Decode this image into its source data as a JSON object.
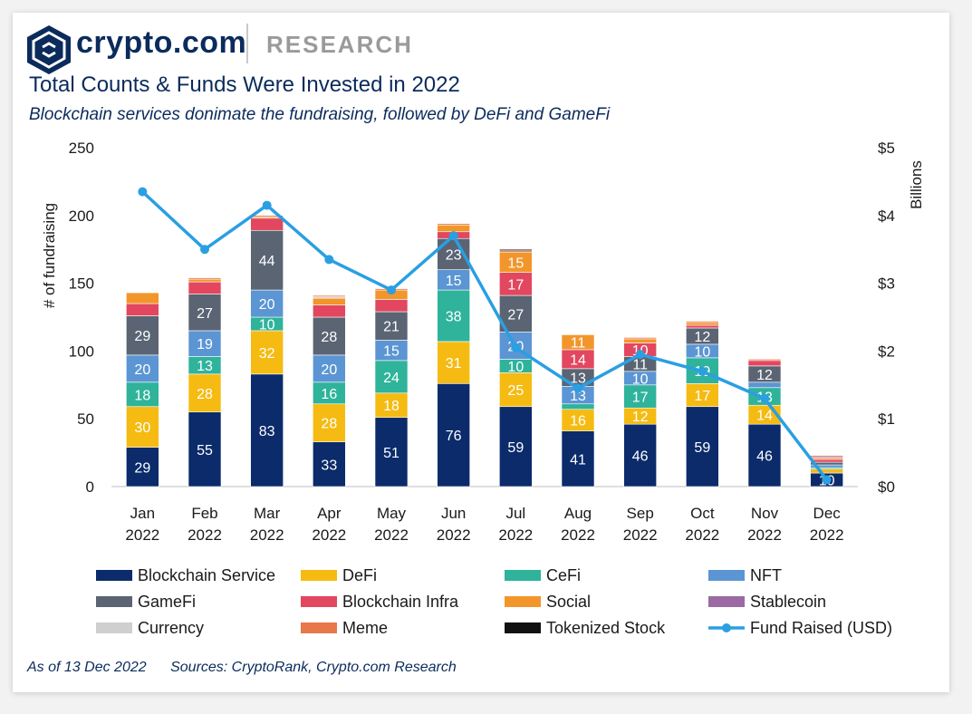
{
  "header": {
    "brand": "crypto.com",
    "section": "RESEARCH",
    "title": "Total Counts & Funds Were Invested in 2022",
    "subtitle": "Blockchain services donimate the fundraising, followed by DeFi and GameFi"
  },
  "footer": {
    "as_of": "As of 13 Dec 2022",
    "sources": "Sources: CryptoRank, Crypto.com Research"
  },
  "colors": {
    "brand_navy": "#0b2b5c",
    "line": "#2a9fe2"
  },
  "chart_data": {
    "type": "bar",
    "stacked": true,
    "categories": [
      "Jan 2022",
      "Feb 2022",
      "Mar 2022",
      "Apr 2022",
      "May 2022",
      "Jun 2022",
      "Jul 2022",
      "Aug 2022",
      "Sep 2022",
      "Oct 2022",
      "Nov 2022",
      "Dec 2022"
    ],
    "ylabel": "# of fundraising",
    "y2label": "Billions",
    "ylim": [
      0,
      250
    ],
    "y2lim": [
      0,
      5
    ],
    "yticks": [
      "0",
      "50",
      "100",
      "150",
      "200",
      "250"
    ],
    "y2ticks": [
      "$0",
      "$1",
      "$2",
      "$3",
      "$4",
      "$5"
    ],
    "grid": false,
    "legend_position": "bottom",
    "series": [
      {
        "name": "Blockchain Service",
        "color": "#0b2b6b",
        "values": [
          29,
          55,
          83,
          33,
          51,
          76,
          59,
          41,
          46,
          59,
          46,
          10
        ],
        "labels": [
          "29",
          "55",
          "83",
          "33",
          "51",
          "76",
          "59",
          "41",
          "46",
          "59",
          "46",
          "10"
        ]
      },
      {
        "name": "DeFi",
        "color": "#f5bb12",
        "values": [
          30,
          28,
          32,
          28,
          18,
          31,
          25,
          16,
          12,
          17,
          14,
          3
        ],
        "labels": [
          "30",
          "28",
          "32",
          "28",
          "18",
          "31",
          "25",
          "16",
          "12",
          "17",
          "14",
          ""
        ]
      },
      {
        "name": "CeFi",
        "color": "#2fb39b",
        "values": [
          18,
          13,
          10,
          16,
          24,
          38,
          10,
          4,
          17,
          19,
          13,
          1
        ],
        "labels": [
          "18",
          "13",
          "10",
          "16",
          "24",
          "38",
          "10",
          "",
          "17",
          "19",
          "13",
          ""
        ]
      },
      {
        "name": "NFT",
        "color": "#5b95d3",
        "values": [
          20,
          19,
          20,
          20,
          15,
          15,
          20,
          13,
          10,
          10,
          4,
          2
        ],
        "labels": [
          "20",
          "19",
          "20",
          "20",
          "15",
          "15",
          "20",
          "13",
          "10",
          "10",
          "",
          ""
        ]
      },
      {
        "name": "GameFi",
        "color": "#5a6473",
        "values": [
          29,
          27,
          44,
          28,
          21,
          23,
          27,
          13,
          11,
          12,
          12,
          2
        ],
        "labels": [
          "29",
          "27",
          "44",
          "28",
          "21",
          "23",
          "27",
          "13",
          "11",
          "12",
          "12",
          ""
        ]
      },
      {
        "name": "Blockchain Infra",
        "color": "#e2475f",
        "values": [
          9,
          9,
          9,
          9,
          9,
          5,
          17,
          14,
          10,
          2,
          4,
          2
        ],
        "labels": [
          "",
          "",
          "",
          "",
          "",
          "",
          "17",
          "14",
          "10",
          "",
          "",
          ""
        ]
      },
      {
        "name": "Social",
        "color": "#f2962b",
        "values": [
          8,
          2,
          1,
          5,
          7,
          5,
          15,
          11,
          3,
          2,
          0,
          1
        ],
        "labels": [
          "",
          "",
          "",
          "",
          "",
          "",
          "15",
          "11",
          "",
          "",
          "",
          ""
        ]
      },
      {
        "name": "Stablecoin",
        "color": "#9b6aa3",
        "values": [
          0,
          0,
          0,
          0,
          0,
          0,
          0,
          0,
          0,
          0,
          0,
          1
        ],
        "labels": [
          "",
          "",
          "",
          "",
          "",
          "",
          "",
          "",
          "",
          "",
          "",
          ""
        ]
      },
      {
        "name": "Currency",
        "color": "#cfcfcf",
        "values": [
          0,
          0,
          0,
          1,
          0,
          0,
          0,
          0,
          0,
          0,
          0,
          0
        ],
        "labels": [
          "",
          "",
          "",
          "",
          "",
          "",
          "",
          "",
          "",
          "",
          "",
          ""
        ]
      },
      {
        "name": "Meme",
        "color": "#e8774a",
        "values": [
          0,
          1,
          1,
          1,
          1,
          1,
          1,
          0,
          1,
          1,
          1,
          1
        ],
        "labels": [
          "",
          "",
          "",
          "",
          "",
          "",
          "",
          "",
          "",
          "",
          "",
          ""
        ]
      },
      {
        "name": "Tokenized Stock",
        "color": "#111111",
        "values": [
          0,
          0,
          0,
          0,
          0,
          0,
          1,
          0,
          0,
          0,
          0,
          0
        ],
        "labels": [
          "",
          "",
          "",
          "",
          "",
          "",
          "",
          "",
          "",
          "",
          "",
          ""
        ]
      }
    ],
    "line_series": {
      "name": "Fund Raised (USD)",
      "color": "#2a9fe2",
      "axis": "right",
      "values": [
        4.35,
        3.5,
        4.15,
        3.35,
        2.9,
        3.7,
        2.05,
        1.45,
        1.95,
        1.7,
        1.3,
        0.1
      ]
    }
  }
}
